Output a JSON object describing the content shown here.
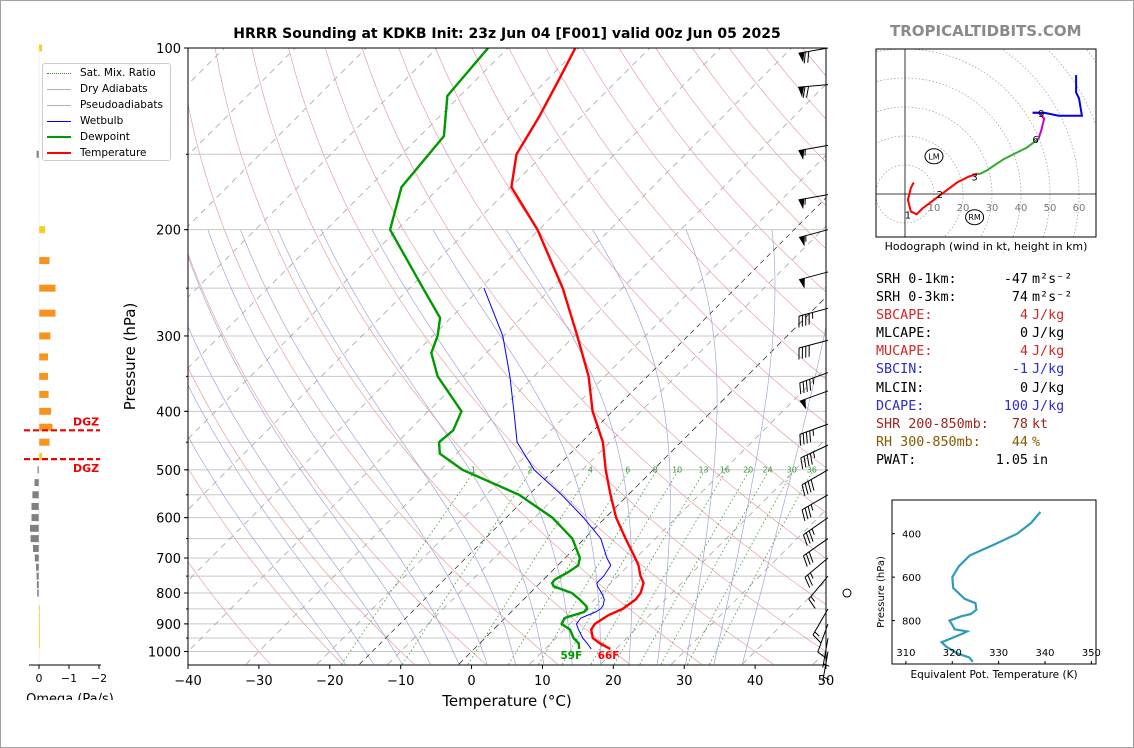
{
  "header": {
    "title": "HRRR Sounding at KDKB Init: 23z Jun 04 [F001] valid 00z Jun 05 2025",
    "brand": "TROPICALTIDBITS.COM"
  },
  "colors": {
    "temperature": "#ff0000",
    "dewpoint": "#009900",
    "wetbulb": "#0000ff",
    "thetae": "#2e9bbb",
    "hodo_low": "#ff0000",
    "hodo_mid": "#33aa33",
    "hodo_upper": "#cc00cc",
    "hodo_top": "#0000ee",
    "omega_pos": "#f7931e",
    "omega_yellow": "#f5d020",
    "omega_neg": "#808080",
    "cape": "#d62728",
    "cin": "#2c2cd2",
    "dcape": "#2c2cd2",
    "shear": "#a0261c",
    "rh": "#8a5a00"
  },
  "legend": {
    "items": [
      {
        "label": "Sat. Mix. Ratio",
        "icon": "dotted-green-line"
      },
      {
        "label": "Dry Adiabats",
        "icon": "gray-line"
      },
      {
        "label": "Pseudoadiabats",
        "icon": "gray-line"
      },
      {
        "label": "Wetbulb",
        "icon": "blue-line"
      },
      {
        "label": "Dewpoint",
        "icon": "green-line"
      },
      {
        "label": "Temperature",
        "icon": "red-line"
      }
    ]
  },
  "chart_data": [
    {
      "type": "line",
      "name": "skew-t",
      "xlabel": "Temperature (°C)",
      "ylabel": "Pressure (hPa)",
      "xlim": [
        -40,
        50
      ],
      "ylim": [
        1050,
        100
      ],
      "y_scale": "log",
      "x_ticks": [
        -40,
        -30,
        -20,
        -10,
        0,
        10,
        20,
        30,
        40,
        50
      ],
      "x_tick_labels": [
        "−40",
        "−30",
        "−20",
        "−10",
        "0",
        "10",
        "20",
        "30",
        "40",
        "50"
      ],
      "y_ticks": [
        100,
        200,
        300,
        400,
        500,
        600,
        700,
        800,
        900,
        1000
      ],
      "y_gridlines": [
        100,
        150,
        200,
        250,
        300,
        350,
        400,
        450,
        500,
        550,
        600,
        650,
        700,
        750,
        800,
        850,
        900,
        950,
        1000
      ],
      "surface_labels": {
        "dewpoint": "59F",
        "temperature": "66F"
      },
      "mixing_ratio_labels": [
        "1",
        "2",
        "4",
        "6",
        "8",
        "10",
        "13",
        "16",
        "20",
        "24",
        "30",
        "36"
      ],
      "series": [
        {
          "key": "temperature",
          "pressure": [
            990,
            970,
            950,
            920,
            900,
            870,
            850,
            820,
            800,
            770,
            750,
            720,
            700,
            650,
            600,
            550,
            500,
            450,
            400,
            350,
            300,
            250,
            200,
            170,
            150,
            130,
            110,
            100
          ],
          "temp": [
            19.2,
            17,
            15.2,
            13.8,
            13.5,
            14.2,
            15.3,
            15.8,
            15.6,
            14.6,
            13.2,
            11.4,
            9.9,
            5.8,
            1.5,
            -2.5,
            -6.7,
            -11,
            -16.8,
            -22.3,
            -29.6,
            -38.4,
            -50.2,
            -59.9,
            -63.8,
            -65.9,
            -68.8,
            -70.5
          ]
        },
        {
          "key": "dewpoint",
          "pressure": [
            990,
            970,
            950,
            920,
            900,
            880,
            860,
            850,
            840,
            820,
            800,
            780,
            770,
            760,
            740,
            720,
            700,
            650,
            600,
            550,
            500,
            470,
            450,
            430,
            400,
            350,
            320,
            300,
            280,
            250,
            200,
            170,
            140,
            120,
            100
          ],
          "temp": [
            14.8,
            14,
            12.5,
            10.8,
            8.8,
            8.4,
            10.3,
            10.3,
            9.7,
            7.9,
            5.9,
            2.4,
            1.7,
            1.6,
            2.4,
            2.9,
            2.1,
            -1.7,
            -7.5,
            -15.4,
            -26.9,
            -32.4,
            -34.1,
            -33.8,
            -35.3,
            -43.6,
            -47.8,
            -49.3,
            -51.5,
            -58.1,
            -71,
            -75.4,
            -76.6,
            -81.8,
            -82.8
          ]
        },
        {
          "key": "wetbulb",
          "pressure": [
            990,
            970,
            950,
            920,
            900,
            880,
            860,
            850,
            840,
            820,
            800,
            780,
            770,
            750,
            720,
            700,
            650,
            600,
            550,
            500,
            450,
            400,
            350,
            300,
            250
          ],
          "temp": [
            16.5,
            15.2,
            13.8,
            12,
            10.9,
            10.7,
            11.9,
            12.2,
            12.1,
            11.4,
            10.1,
            8.6,
            8,
            8,
            7.5,
            5.9,
            2.3,
            -3.1,
            -9.4,
            -16.8,
            -23.1,
            -27.9,
            -33.4,
            -40.1,
            -49.5
          ]
        }
      ]
    },
    {
      "type": "line",
      "name": "hodograph",
      "caption": "Hodograph (wind in kt, height in km)",
      "ring_labels": [
        "10",
        "20",
        "30",
        "40",
        "50",
        "60"
      ],
      "storm_motion_labels": {
        "left_mover": "LM",
        "right_mover": "RM"
      },
      "height_labels": [
        "1",
        "2",
        "3",
        "6",
        "9"
      ],
      "segments": [
        {
          "name": "0-3 km",
          "u": [
            3,
            2,
            1,
            2,
            4,
            6,
            10,
            14,
            18,
            22,
            25
          ],
          "v": [
            4,
            2,
            -2,
            -6,
            -7,
            -5,
            -2,
            1,
            4,
            6,
            7
          ]
        },
        {
          "name": "3-6 km",
          "u": [
            25,
            26,
            28,
            31,
            34,
            38,
            42,
            46
          ],
          "v": [
            7,
            7,
            8,
            10,
            12,
            14,
            16,
            19
          ]
        },
        {
          "name": "6-9 km",
          "u": [
            46,
            47,
            48,
            46,
            44
          ],
          "v": [
            19,
            22,
            26,
            28,
            28
          ]
        },
        {
          "name": "9+ km",
          "u": [
            44,
            48,
            53,
            58,
            61,
            60,
            59,
            59
          ],
          "v": [
            28,
            28,
            27,
            27,
            27,
            33,
            35,
            41
          ]
        }
      ],
      "height_marks": [
        {
          "label": "1",
          "u": 1,
          "v": -7
        },
        {
          "label": "2",
          "u": 12,
          "v": 0
        },
        {
          "label": "3",
          "u": 24,
          "v": 6
        },
        {
          "label": "6",
          "u": 45,
          "v": 19
        },
        {
          "label": "9",
          "u": 47,
          "v": 28
        }
      ],
      "storm_motion": [
        {
          "label": "LM",
          "u": 10,
          "v": 13
        },
        {
          "label": "RM",
          "u": 24,
          "v": -8
        }
      ]
    },
    {
      "type": "line",
      "name": "theta-e",
      "xlabel": "Equivalent Pot. Temperature (K)",
      "ylabel": "Pressure (hPa)",
      "xlim": [
        307,
        351
      ],
      "x_ticks": [
        "310",
        "320",
        "330",
        "340",
        "350"
      ],
      "y_ticks": [
        "400",
        "600",
        "800"
      ],
      "pressure": [
        990,
        970,
        950,
        920,
        900,
        880,
        860,
        850,
        840,
        820,
        800,
        780,
        770,
        750,
        720,
        700,
        650,
        600,
        550,
        500,
        450,
        400,
        350,
        300
      ],
      "theta_e": [
        324.4,
        323.7,
        320.9,
        318.7,
        317.7,
        320,
        322.2,
        323.2,
        320.5,
        320,
        319.4,
        322,
        324,
        325.2,
        325,
        322.7,
        320.2,
        320,
        321.4,
        323.8,
        329,
        334,
        337,
        339
      ]
    },
    {
      "type": "bar",
      "name": "omega",
      "xlabel": "Omega (Pa/s)",
      "x_ticks": [
        "0",
        "−1",
        "−2"
      ],
      "dgz_label": "DGZ",
      "dgz_pressure": [
        480,
        430
      ],
      "pressure": [
        100,
        150,
        200,
        225,
        250,
        275,
        300,
        325,
        350,
        375,
        400,
        425,
        450,
        475,
        500,
        525,
        550,
        575,
        600,
        625,
        650,
        675,
        700,
        725,
        750,
        775,
        800,
        850,
        875,
        900,
        925,
        950,
        975
      ],
      "omega": [
        -0.1,
        0.08,
        -0.2,
        -0.35,
        -0.55,
        -0.55,
        -0.38,
        -0.3,
        -0.3,
        -0.32,
        -0.4,
        -0.45,
        -0.35,
        -0.1,
        0.05,
        0.15,
        0.22,
        0.25,
        0.25,
        0.3,
        0.28,
        0.2,
        0.14,
        0.1,
        0.08,
        0.07,
        0.06,
        -0.02,
        -0.03,
        -0.03,
        -0.02,
        -0.02,
        -0.01
      ]
    }
  ],
  "barbs": {
    "pressure": [
      100,
      115,
      145,
      175,
      200,
      235,
      270,
      305,
      345,
      370,
      420,
      455,
      500,
      550,
      600,
      650,
      700,
      750,
      800,
      850,
      900,
      950,
      1000
    ],
    "speed_kt": [
      70,
      70,
      55,
      55,
      55,
      50,
      45,
      40,
      45,
      50,
      45,
      45,
      40,
      35,
      35,
      30,
      25,
      15,
      0,
      15,
      10,
      5,
      5
    ],
    "direction_deg": [
      260,
      265,
      260,
      260,
      255,
      255,
      255,
      255,
      250,
      250,
      250,
      245,
      240,
      240,
      235,
      235,
      230,
      220,
      0,
      210,
      200,
      190,
      190
    ]
  },
  "params": {
    "rows": [
      {
        "label": "SRH 0-1km:",
        "value": "-47",
        "unit": "m²s⁻²",
        "color": "#000000"
      },
      {
        "label": "SRH 0-3km:",
        "value": "74",
        "unit": "m²s⁻²",
        "color": "#000000"
      },
      {
        "label": "SBCAPE:",
        "value": "4",
        "unit": "J/kg",
        "color": "#d62728"
      },
      {
        "label": "MLCAPE:",
        "value": "0",
        "unit": "J/kg",
        "color": "#000000"
      },
      {
        "label": "MUCAPE:",
        "value": "4",
        "unit": "J/kg",
        "color": "#d62728"
      },
      {
        "label": "SBCIN:",
        "value": "-1",
        "unit": "J/kg",
        "color": "#2c2cd2"
      },
      {
        "label": "MLCIN:",
        "value": "0",
        "unit": "J/kg",
        "color": "#000000"
      },
      {
        "label": "DCAPE:",
        "value": "100",
        "unit": "J/kg",
        "color": "#2c2cd2"
      },
      {
        "label": "SHR 200-850mb:",
        "value": "78",
        "unit": "kt",
        "color": "#a0261c"
      },
      {
        "label": "RH 300-850mb:",
        "value": "44",
        "unit": "%",
        "color": "#8a5a00"
      },
      {
        "label": "PWAT:",
        "value": "1.05",
        "unit": "in",
        "color": "#000000"
      }
    ]
  }
}
